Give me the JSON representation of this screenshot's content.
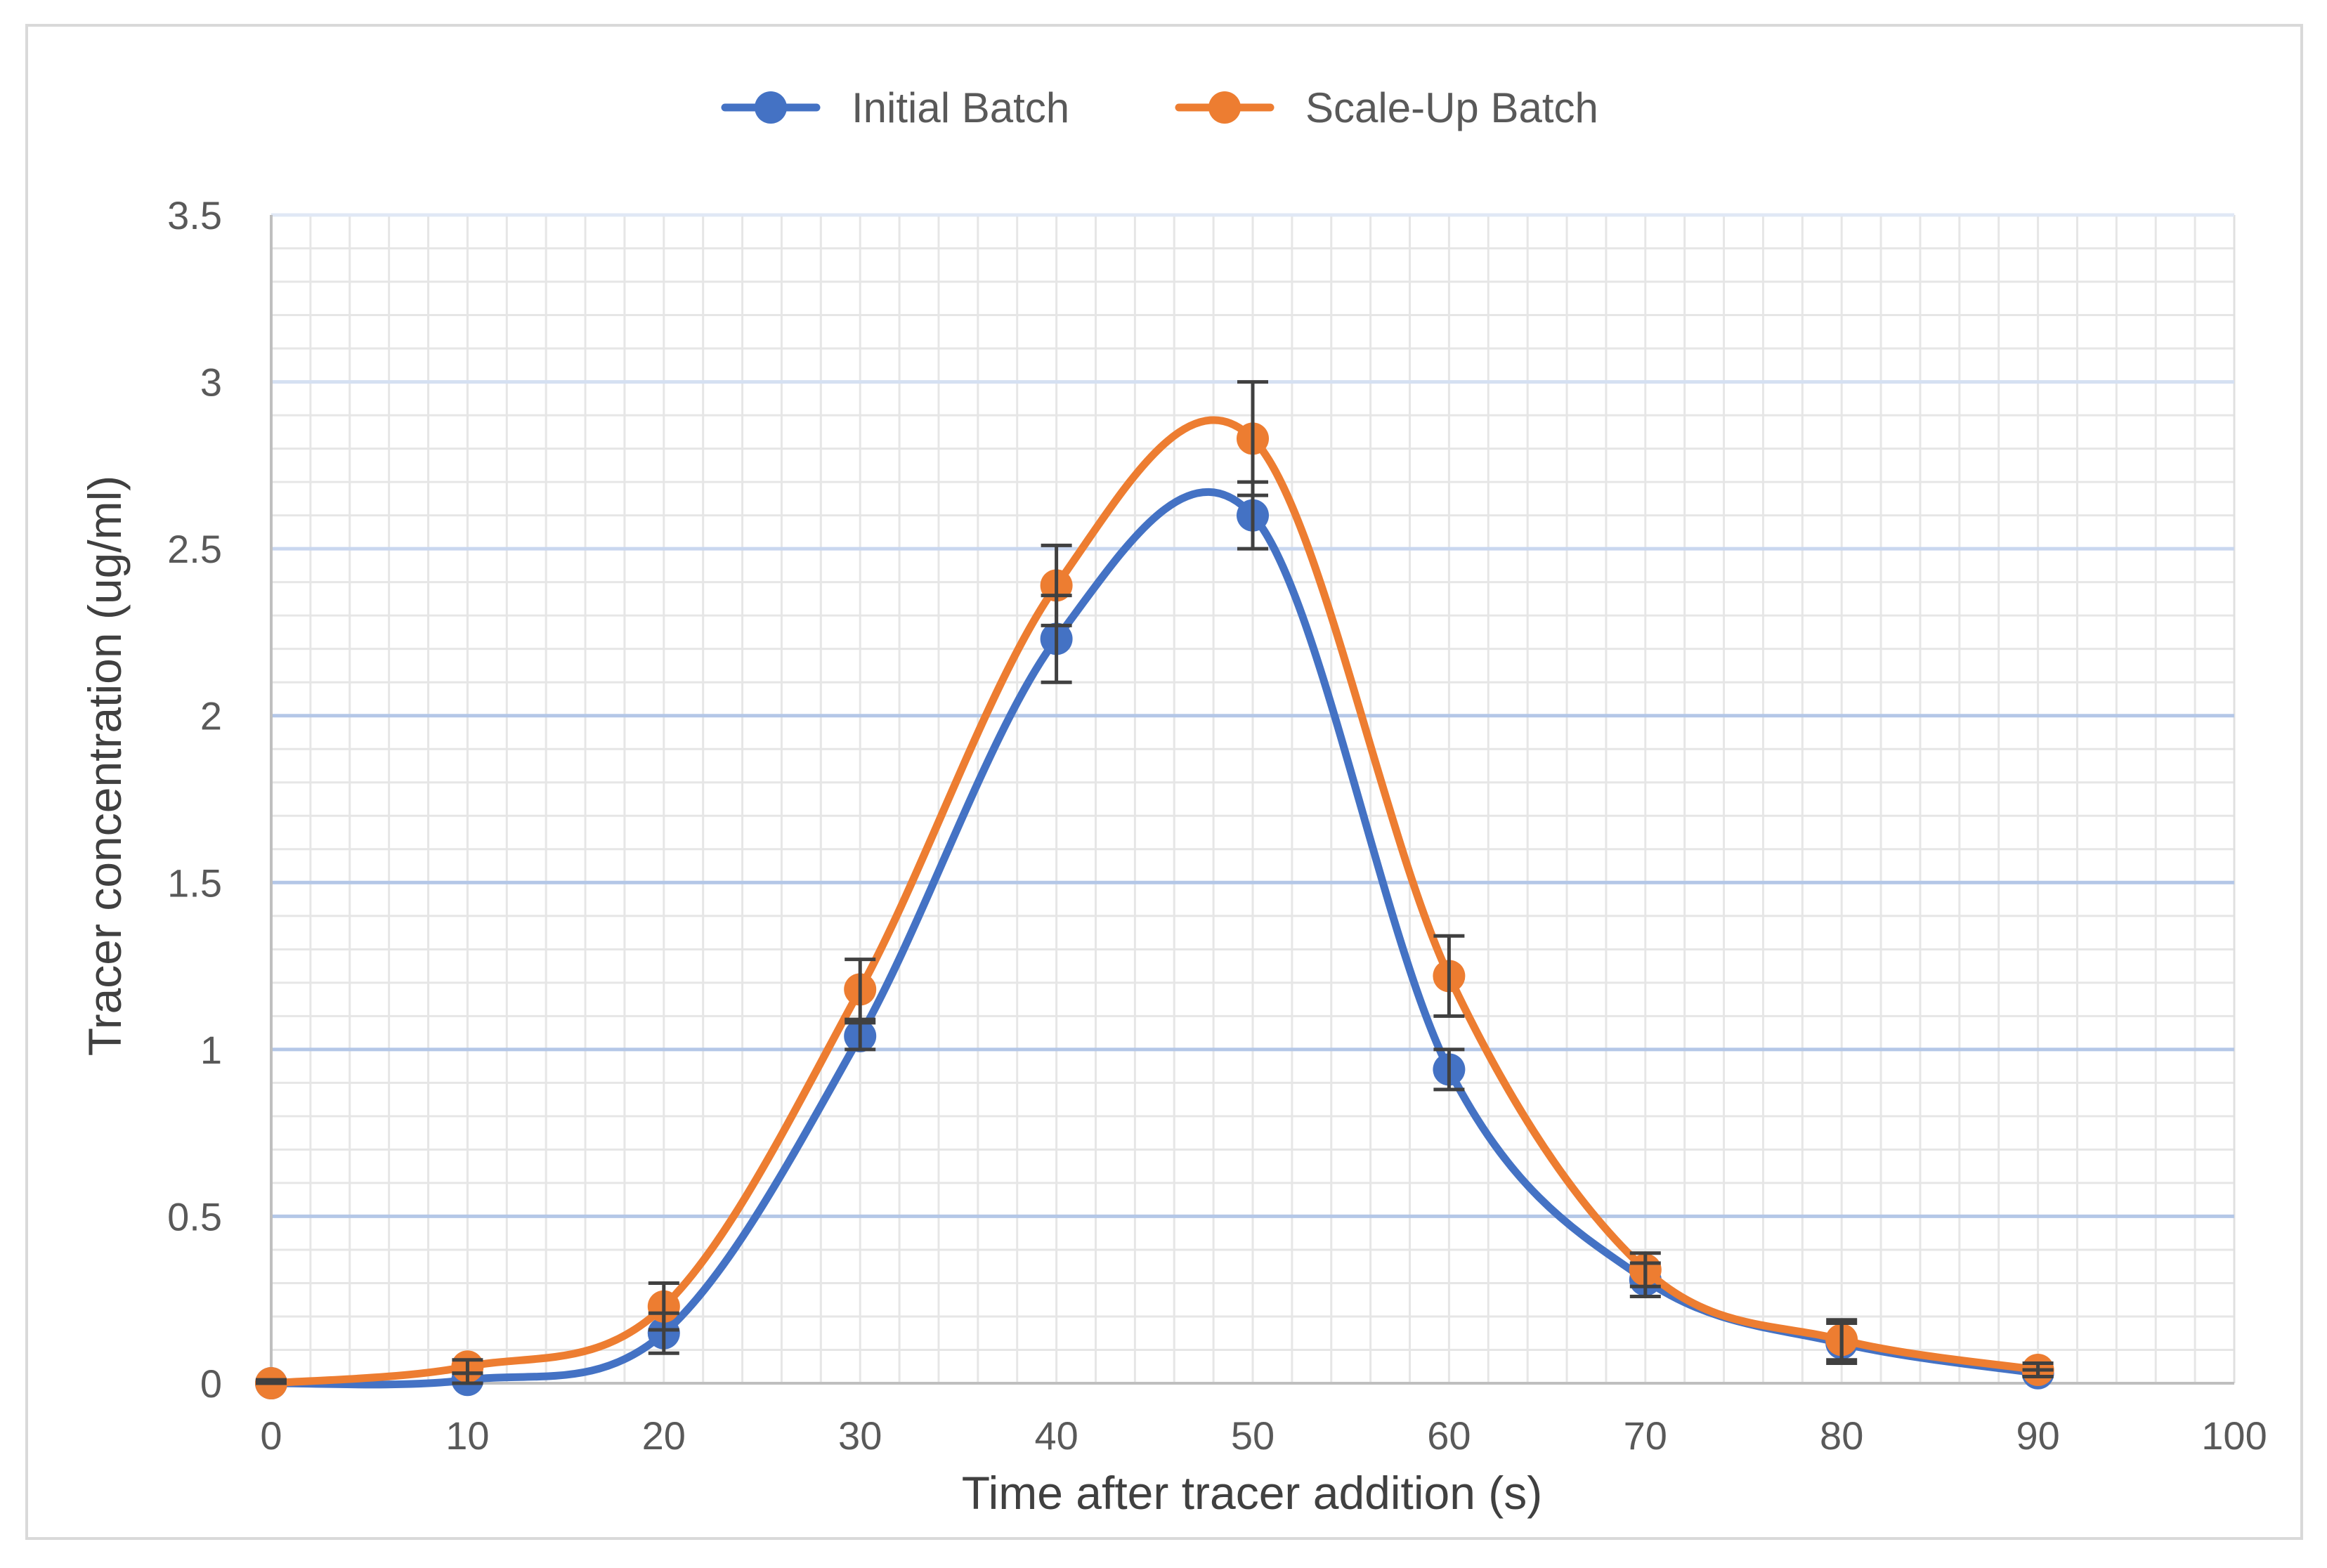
{
  "chart_data": {
    "type": "line",
    "title": "",
    "xlabel": "Time after tracer addition (s)",
    "ylabel": "Tracer concentration (ug/ml)",
    "xlim": [
      0,
      100
    ],
    "ylim": [
      0,
      3.5
    ],
    "x_ticks": [
      0,
      10,
      20,
      30,
      40,
      50,
      60,
      70,
      80,
      90,
      100
    ],
    "y_ticks": [
      0,
      0.5,
      1,
      1.5,
      2,
      2.5,
      3,
      3.5
    ],
    "x_tick_labels": [
      "0",
      "10",
      "20",
      "30",
      "40",
      "50",
      "60",
      "70",
      "80",
      "90",
      "100"
    ],
    "y_tick_labels": [
      "0",
      "0.5",
      "1",
      "1.5",
      "2",
      "2.5",
      "3",
      "3.5"
    ],
    "grid": {
      "major": true,
      "minor": true
    },
    "legend": {
      "position": "top"
    },
    "x": [
      0,
      10,
      20,
      30,
      40,
      50,
      60,
      70,
      80,
      90
    ],
    "series": [
      {
        "name": "Initial Batch",
        "color": "#4472C4",
        "values": [
          0,
          0.01,
          0.15,
          1.04,
          2.23,
          2.6,
          0.94,
          0.31,
          0.12,
          0.03
        ],
        "errors": [
          0.01,
          0.02,
          0.06,
          0.04,
          0.13,
          0.1,
          0.06,
          0.05,
          0.06,
          0.01
        ]
      },
      {
        "name": "Scale-Up Batch",
        "color": "#ED7D31",
        "values": [
          0,
          0.05,
          0.23,
          1.18,
          2.39,
          2.83,
          1.22,
          0.34,
          0.13,
          0.04
        ],
        "errors": [
          0.01,
          0.02,
          0.07,
          0.09,
          0.12,
          0.17,
          0.12,
          0.05,
          0.06,
          0.02
        ]
      }
    ]
  }
}
